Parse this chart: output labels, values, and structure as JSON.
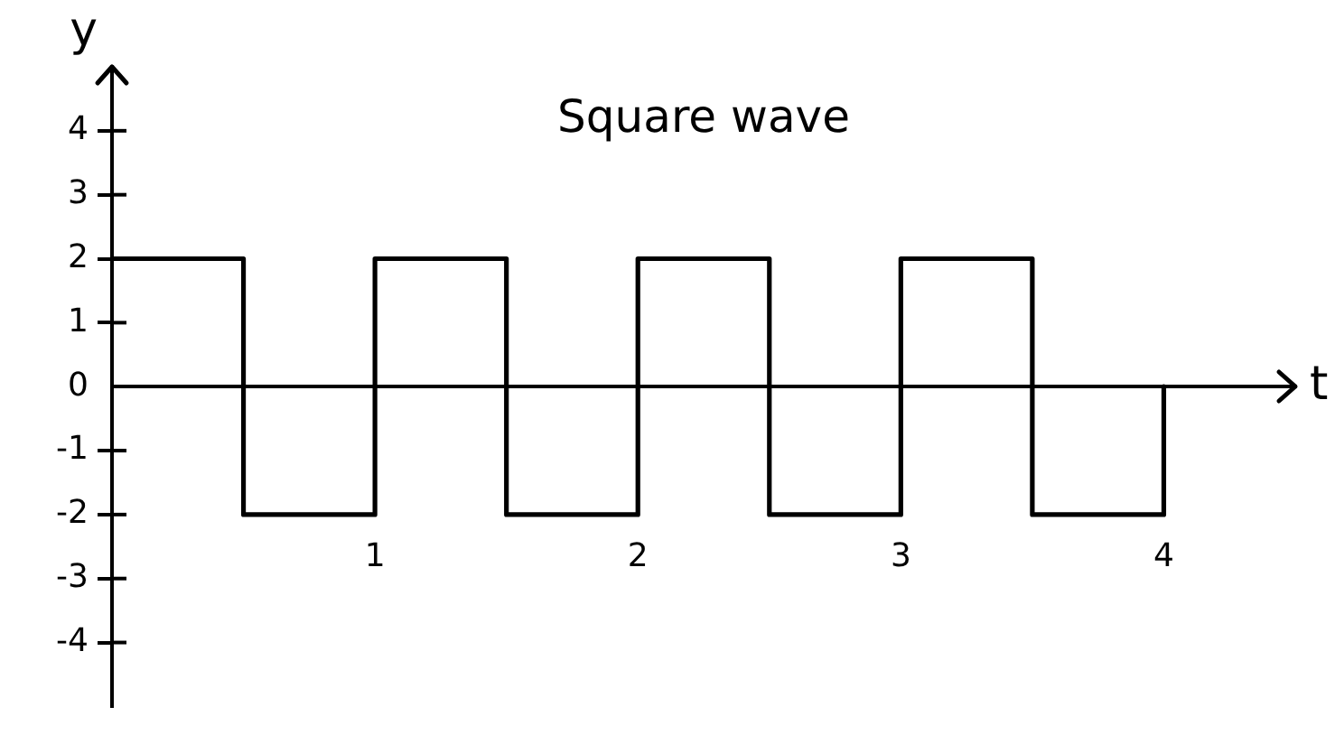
{
  "chart_data": {
    "type": "step",
    "title": "Square wave",
    "xlabel": "t",
    "ylabel": "y",
    "x": [
      0,
      0.5,
      1,
      1.5,
      2,
      2.5,
      3,
      3.5,
      4
    ],
    "series": [
      {
        "color": "#000000",
        "values": [
          2,
          -2,
          2,
          -2,
          2,
          -2,
          2,
          -2,
          0
        ]
      }
    ],
    "xlim": [
      0,
      4.5
    ],
    "ylim": [
      -5,
      5
    ],
    "xticks": [
      1,
      2,
      3,
      4
    ],
    "yticks": [
      -4,
      -3,
      -2,
      -1,
      0,
      1,
      2,
      3,
      4
    ]
  }
}
